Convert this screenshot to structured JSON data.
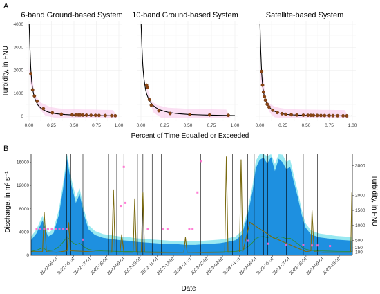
{
  "panel_a_label": "A",
  "panel_b_label": "B",
  "colors": {
    "curve": "#000000",
    "points": "#8b4513",
    "points_stroke": "#5a2d0c",
    "ribbon": "#f7c5ea",
    "grid": "#ebebeb",
    "discharge_fill": "#1e90e0",
    "discharge_band": "#7fe3ee",
    "turbidity_line": "#7a6a10",
    "pink_points": "#ff66cc",
    "green_line": "#2e8b2e",
    "vline": "#000000",
    "left_axis_text": "#3fa9f5",
    "right_axis_text": "#8b6b14"
  },
  "chart_data": [
    {
      "type": "line",
      "title": "6-band Ground-based System",
      "ylabel": "Turbidity, in FNU",
      "xlabel": "Percent of Time Equalled or Exceeded",
      "xlim": [
        0,
        1
      ],
      "ylim": [
        0,
        4000
      ],
      "x_ticks": [
        "0.00",
        "0.25",
        "0.50",
        "0.75",
        "1.00"
      ],
      "y_ticks": [
        "0",
        "1000",
        "2000",
        "3000",
        "4000"
      ],
      "grid": true,
      "curve_x": [
        0.002,
        0.01,
        0.02,
        0.03,
        0.04,
        0.05,
        0.06,
        0.08,
        0.1,
        0.13,
        0.16,
        0.2,
        0.25,
        0.3,
        0.35,
        0.4,
        0.5,
        0.6,
        0.7,
        0.8,
        0.9,
        1.0
      ],
      "curve_y": [
        4000,
        3000,
        2050,
        1500,
        1200,
        980,
        820,
        620,
        480,
        360,
        275,
        200,
        145,
        110,
        88,
        72,
        52,
        40,
        32,
        26,
        20,
        15
      ],
      "points_x": [
        0.02,
        0.04,
        0.06,
        0.09,
        0.16,
        0.26,
        0.36,
        0.48,
        0.52,
        0.55,
        0.57,
        0.6,
        0.64,
        0.69,
        0.74,
        0.78,
        0.85,
        0.92,
        0.96
      ],
      "points_y": [
        1850,
        1150,
        880,
        650,
        330,
        150,
        90,
        60,
        55,
        52,
        50,
        47,
        45,
        42,
        38,
        35,
        30,
        25,
        22
      ]
    },
    {
      "type": "line",
      "title": "10-band Ground-based System",
      "xlim": [
        0,
        1
      ],
      "ylim": [
        0,
        4000
      ],
      "x_ticks": [
        "0.00",
        "0.25",
        "0.50",
        "0.75",
        "1.00"
      ],
      "grid": true,
      "curve_x": [
        0.002,
        0.01,
        0.02,
        0.03,
        0.04,
        0.05,
        0.06,
        0.08,
        0.1,
        0.13,
        0.16,
        0.2,
        0.25,
        0.3,
        0.35,
        0.4,
        0.5,
        0.6,
        0.7,
        0.8,
        0.9,
        1.0
      ],
      "curve_y": [
        4000,
        3050,
        2200,
        1700,
        1400,
        1150,
        980,
        760,
        610,
        470,
        370,
        280,
        210,
        165,
        135,
        112,
        82,
        64,
        52,
        43,
        36,
        30
      ],
      "points_x": [
        0.06,
        0.07,
        0.09,
        0.11,
        0.19,
        0.31,
        0.52,
        0.73,
        0.93
      ],
      "points_y": [
        1350,
        1250,
        720,
        480,
        240,
        120,
        75,
        55,
        40
      ]
    },
    {
      "type": "line",
      "title": "Satellite-based System",
      "xlim": [
        0,
        1
      ],
      "ylim": [
        0,
        4000
      ],
      "x_ticks": [
        "0.00",
        "0.25",
        "0.50",
        "0.75",
        "1.00"
      ],
      "grid": true,
      "curve_x": [
        0.002,
        0.01,
        0.02,
        0.03,
        0.04,
        0.05,
        0.06,
        0.08,
        0.1,
        0.13,
        0.16,
        0.2,
        0.25,
        0.3,
        0.35,
        0.4,
        0.5,
        0.6,
        0.7,
        0.8,
        0.9,
        1.0
      ],
      "curve_y": [
        4000,
        2900,
        1900,
        1350,
        1050,
        850,
        700,
        520,
        400,
        290,
        215,
        150,
        100,
        75,
        60,
        50,
        38,
        30,
        25,
        21,
        18,
        15
      ],
      "points_x": [
        0.02,
        0.03,
        0.04,
        0.05,
        0.06,
        0.08,
        0.1,
        0.14,
        0.19,
        0.24,
        0.28,
        0.34,
        0.4,
        0.47,
        0.52,
        0.55,
        0.58,
        0.62,
        0.66,
        0.7,
        0.75,
        0.79,
        0.84,
        0.9,
        0.94
      ],
      "points_y": [
        1950,
        1350,
        1050,
        850,
        700,
        520,
        400,
        260,
        160,
        110,
        85,
        65,
        52,
        45,
        40,
        38,
        36,
        34,
        31,
        29,
        27,
        25,
        22,
        19,
        17
      ]
    },
    {
      "type": "area",
      "xlabel": "Date",
      "ylabel": "Discharge, in m³ s⁻¹",
      "ylabel_right": "Turbidity, in FNU",
      "x_range": [
        "2022-03-15",
        "2023-10-25"
      ],
      "x_ticks": [
        "2022-05-01",
        "2022-06-01",
        "2022-07-01",
        "2022-08-01",
        "2022-09-01",
        "2022-10-01",
        "2022-11-01",
        "2022-12-01",
        "2023-01-01",
        "2023-02-01",
        "2023-03-01",
        "2023-04-01",
        "2023-05-01",
        "2023-06-01",
        "2023-07-01",
        "2023-08-01",
        "2023-09-01",
        "2023-10-01"
      ],
      "ylim_left": [
        0,
        17500
      ],
      "y_ticks_left": [
        "0",
        "4000",
        "8000",
        "12000",
        "16000"
      ],
      "ylim_right": [
        0,
        3400
      ],
      "y_ticks_right": [
        "100",
        "250",
        "500",
        "1000",
        "1500",
        "2000",
        "3000"
      ],
      "discharge": {
        "dates": [
          "2022-03-15",
          "2022-03-25",
          "2022-04-05",
          "2022-04-15",
          "2022-04-25",
          "2022-05-05",
          "2022-05-12",
          "2022-05-20",
          "2022-05-28",
          "2022-06-05",
          "2022-06-12",
          "2022-06-20",
          "2022-06-28",
          "2022-07-10",
          "2022-07-25",
          "2022-08-10",
          "2022-08-25",
          "2022-09-10",
          "2022-09-25",
          "2022-10-10",
          "2022-10-25",
          "2022-11-10",
          "2022-11-25",
          "2022-12-10",
          "2022-12-25",
          "2023-01-10",
          "2023-01-25",
          "2023-02-10",
          "2023-02-25",
          "2023-03-10",
          "2023-03-25",
          "2023-04-05",
          "2023-04-15",
          "2023-04-25",
          "2023-05-01",
          "2023-05-08",
          "2023-05-15",
          "2023-05-22",
          "2023-05-29",
          "2023-06-05",
          "2023-06-12",
          "2023-06-19",
          "2023-06-26",
          "2023-07-03",
          "2023-07-10",
          "2023-07-17",
          "2023-07-24",
          "2023-07-31",
          "2023-08-10",
          "2023-08-25",
          "2023-09-10",
          "2023-09-25",
          "2023-10-10",
          "2023-10-25"
        ],
        "values": [
          2600,
          3800,
          6000,
          3200,
          3800,
          7000,
          11000,
          16600,
          12000,
          9000,
          10500,
          7000,
          4500,
          3500,
          3000,
          2800,
          2600,
          2500,
          2300,
          2200,
          2100,
          2000,
          1900,
          1900,
          1800,
          1800,
          1900,
          2000,
          2100,
          2300,
          2600,
          3500,
          6500,
          11000,
          15000,
          16400,
          16800,
          15800,
          16900,
          14500,
          16600,
          16000,
          14800,
          15200,
          12500,
          10000,
          7000,
          4800,
          3600,
          3100,
          2900,
          2700,
          2600,
          2500
        ]
      },
      "turbidity": {
        "dates": [
          "2022-03-15",
          "2022-04-05",
          "2022-04-08",
          "2022-04-12",
          "2022-05-01",
          "2022-05-20",
          "2022-05-23",
          "2022-05-26",
          "2022-06-20",
          "2022-07-10",
          "2022-08-10",
          "2022-08-13",
          "2022-08-16",
          "2022-08-25",
          "2022-08-28",
          "2022-09-01",
          "2022-09-18",
          "2022-09-21",
          "2022-09-24",
          "2022-10-03",
          "2022-10-06",
          "2022-10-09",
          "2022-11-01",
          "2022-12-20",
          "2022-12-23",
          "2022-12-26",
          "2023-02-01",
          "2023-03-05",
          "2023-03-08",
          "2023-03-11",
          "2023-04-01",
          "2023-04-04",
          "2023-04-07",
          "2023-04-20",
          "2023-06-01",
          "2023-08-01",
          "2023-08-10",
          "2023-08-12",
          "2023-08-16",
          "2023-09-01",
          "2023-10-01",
          "2023-10-22",
          "2023-10-24",
          "2023-10-25"
        ],
        "values": [
          120,
          120,
          1450,
          120,
          100,
          150,
          1100,
          150,
          130,
          110,
          100,
          2200,
          110,
          100,
          700,
          100,
          100,
          1900,
          100,
          100,
          2100,
          100,
          90,
          100,
          600,
          100,
          90,
          100,
          3300,
          100,
          110,
          3200,
          110,
          1100,
          600,
          120,
          150,
          1500,
          120,
          100,
          100,
          100,
          2100,
          120
        ]
      },
      "vlines": [
        "2022-05-19",
        "2022-05-27",
        "2022-06-18",
        "2022-07-10",
        "2022-08-04",
        "2022-08-19",
        "2022-09-01",
        "2022-09-26",
        "2022-10-06",
        "2022-10-23",
        "2022-11-09",
        "2023-01-02",
        "2023-01-20",
        "2023-03-19",
        "2023-04-16",
        "2023-04-28",
        "2023-05-15",
        "2023-05-23",
        "2023-06-11",
        "2023-06-26",
        "2023-07-06",
        "2023-07-27",
        "2023-08-12",
        "2023-08-22",
        "2023-09-14",
        "2023-10-08"
      ],
      "pink_points": {
        "dates": [
          "2022-03-25",
          "2022-04-01",
          "2022-04-08",
          "2022-04-15",
          "2022-04-22",
          "2022-04-29",
          "2022-05-06",
          "2022-05-13",
          "2022-05-20",
          "2022-06-18",
          "2022-08-26",
          "2022-09-01",
          "2022-09-04",
          "2022-10-15",
          "2022-11-12",
          "2022-11-20",
          "2022-12-30",
          "2023-01-05",
          "2023-01-14",
          "2023-01-20",
          "2023-04-16",
          "2023-05-23",
          "2023-06-26",
          "2023-07-27",
          "2023-08-12",
          "2023-08-22",
          "2023-09-14"
        ],
        "values": [
          4500,
          4500,
          4500,
          4500,
          4500,
          4500,
          4500,
          4500,
          4500,
          2700,
          8500,
          15200,
          9000,
          4500,
          4500,
          4500,
          4500,
          4500,
          10800,
          16200,
          2500,
          2000,
          1800,
          1800,
          1700,
          1700,
          1600
        ]
      }
    }
  ]
}
